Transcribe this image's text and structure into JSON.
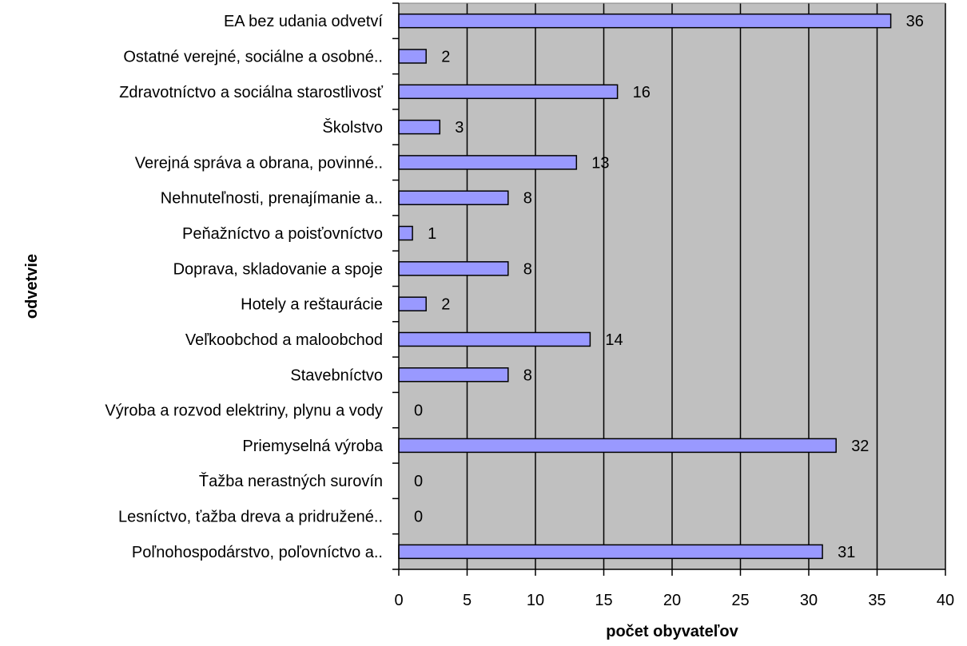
{
  "chart_data": {
    "type": "bar",
    "orientation": "horizontal",
    "xlabel": "počet obyvateľov",
    "ylabel": "odvetvie",
    "xlim": [
      0,
      40
    ],
    "xticks": [
      0,
      5,
      10,
      15,
      20,
      25,
      30,
      35,
      40
    ],
    "grid": "vertical",
    "plot_background": "#c0c0c0",
    "bar_color": "#9999ff",
    "bar_edge_color": "#000000",
    "categories": [
      "EA bez udania odvetví",
      "Ostatné verejné,  sociálne a osobné..",
      "Zdravotníctvo a sociálna starostlivosť",
      "Školstvo",
      "Verejná správa a obrana, povinné..",
      "Nehnuteľnosti, prenajímanie  a..",
      "Peňažníctvo a poisťovníctvo",
      "Doprava, skladovanie a spoje",
      "Hotely a reštaurácie",
      "Veľkoobchod a maloobchod",
      "Stavebníctvo",
      "Výroba a rozvod elektriny, plynu a vody",
      "Priemyselná výroba",
      "Ťažba nerastných surovín",
      "Lesníctvo, ťažba dreva a pridružené..",
      "Poľnohospodárstvo, poľovníctvo a.."
    ],
    "values": [
      36,
      2,
      16,
      3,
      13,
      8,
      1,
      8,
      2,
      14,
      8,
      0,
      32,
      0,
      0,
      31
    ]
  }
}
